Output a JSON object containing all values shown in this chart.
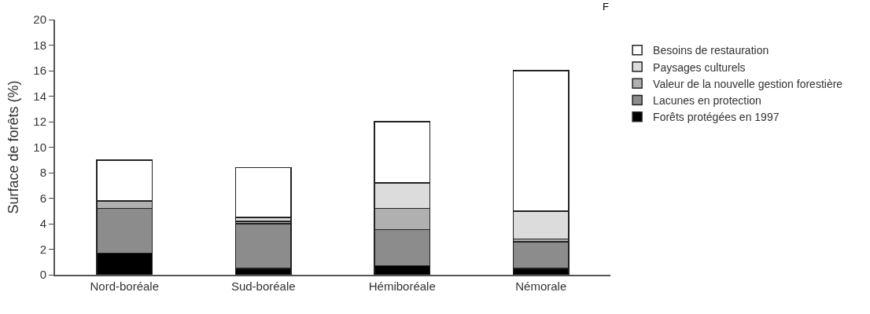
{
  "chart_data": {
    "type": "bar",
    "stacked": true,
    "ylabel": "Surface de forêts (%)",
    "categories": [
      "Nord-boréale",
      "Sud-boréale",
      "Hémiboréale",
      "Némorale"
    ],
    "series": [
      {
        "name": "Forêts protégées en 1997",
        "color": "#000000",
        "values": [
          1.7,
          0.5,
          0.7,
          0.5
        ]
      },
      {
        "name": "Lacunes en protection",
        "color": "#8c8c8c",
        "values": [
          3.5,
          3.5,
          2.85,
          2.1
        ]
      },
      {
        "name": "Valeur de la nouvelle gestion forestière",
        "color": "#b0b0b0",
        "values": [
          0.6,
          0.2,
          1.65,
          0.2
        ]
      },
      {
        "name": "Paysages culturels",
        "color": "#dcdcdc",
        "values": [
          0,
          0.3,
          2.0,
          2.2
        ]
      },
      {
        "name": "Besoins de restauration",
        "color": "#ffffff",
        "values": [
          3.2,
          3.9,
          4.8,
          11.0
        ]
      }
    ],
    "ylim": [
      0,
      20
    ],
    "yticks": [
      0,
      2,
      4,
      6,
      8,
      10,
      12,
      14,
      16,
      18,
      20
    ],
    "grid": false,
    "legend": "right",
    "annotations": [
      "F"
    ]
  }
}
